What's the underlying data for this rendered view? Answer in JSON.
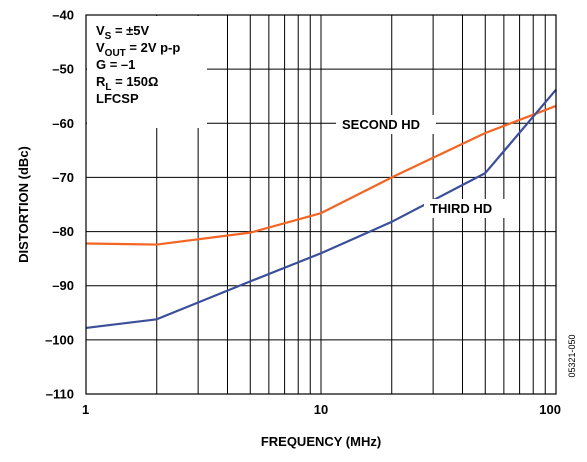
{
  "chart_data": {
    "type": "line",
    "xscale": "log",
    "xlim": [
      1,
      100
    ],
    "ylim": [
      -110,
      -40
    ],
    "xlabel": "FREQUENCY (MHz)",
    "ylabel": "DISTORTION (dBc)",
    "x_ticks": [
      1,
      10,
      100
    ],
    "x_tick_labels": [
      "1",
      "10",
      "100"
    ],
    "y_ticks": [
      -40,
      -50,
      -60,
      -70,
      -80,
      -90,
      -100,
      -110
    ],
    "y_tick_labels": [
      "–40",
      "–50",
      "–60",
      "–70",
      "–80",
      "–90",
      "–100",
      "–110"
    ],
    "grid": true,
    "conditions": [
      {
        "main": "V",
        "sub": "S",
        "rest": " = ±5V"
      },
      {
        "main": "V",
        "sub": "OUT",
        "rest": " = 2V p-p"
      },
      {
        "main": "G = –1",
        "sub": "",
        "rest": ""
      },
      {
        "main": "R",
        "sub": "L",
        "rest": " = 150Ω"
      },
      {
        "main": "LFCSP",
        "sub": "",
        "rest": ""
      }
    ],
    "series": [
      {
        "name": "SECOND HD",
        "color": "#f26522",
        "x": [
          1,
          2,
          5,
          10,
          20,
          50,
          100
        ],
        "y": [
          -82.2,
          -82.4,
          -80.2,
          -76.6,
          -70.0,
          -61.8,
          -56.8
        ]
      },
      {
        "name": "THIRD HD",
        "color": "#3b4f9a",
        "x": [
          1,
          2,
          5,
          10,
          20,
          50,
          100
        ],
        "y": [
          -97.8,
          -96.2,
          -89.2,
          -84.0,
          -78.2,
          -69.2,
          -53.8
        ]
      }
    ],
    "figure_id": "05321-050"
  }
}
